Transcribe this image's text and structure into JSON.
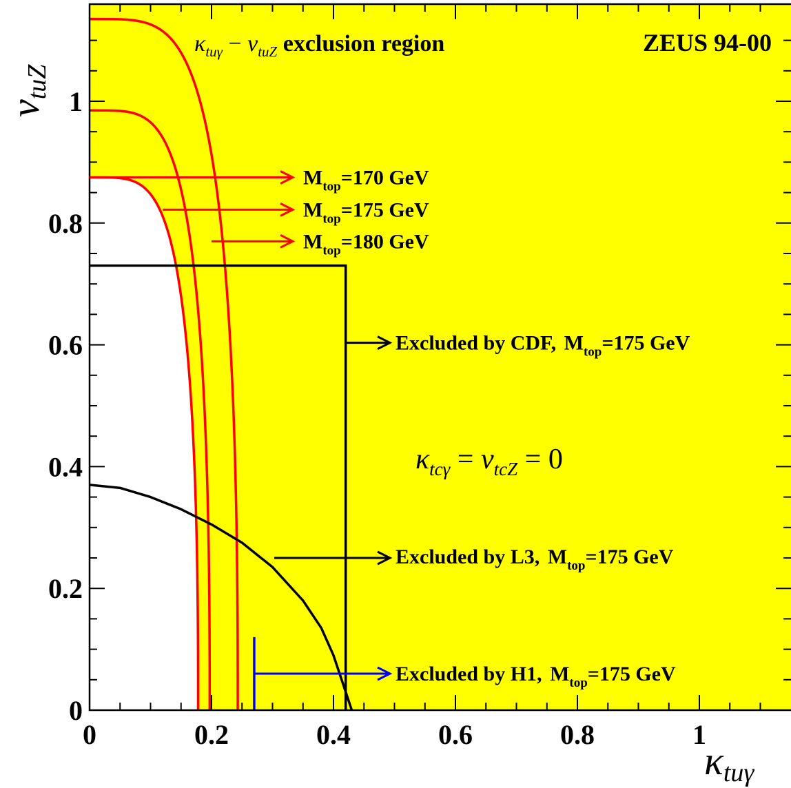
{
  "chart_data": {
    "type": "line",
    "title": "ZEUS 94-00",
    "subtitle": {
      "kappa": "κ",
      "sub1": "tuγ",
      "dash": "−",
      "v": "v",
      "sub2": "tuZ",
      "text": "exclusion region"
    },
    "xlabel": {
      "symbol": "κ",
      "sub": "tuγ"
    },
    "ylabel": {
      "symbol": "v",
      "sub": "tuZ"
    },
    "xlim": [
      0,
      1.15
    ],
    "ylim": [
      0,
      1.15
    ],
    "xticks": [
      "0",
      "0.2",
      "0.4",
      "0.6",
      "0.8",
      "1"
    ],
    "yticks": [
      "0",
      "0.2",
      "0.4",
      "0.6",
      "0.8",
      "1"
    ],
    "background_color": "#ffff00",
    "excluded_color": "#ffff00",
    "allowed_color": "#ffffff",
    "condition": {
      "k": "κ",
      "ksub": "tcγ",
      "eq": "=",
      "v": "v",
      "vsub": "tcZ",
      "eq2": "= 0"
    },
    "series": [
      {
        "name": "M_top=170 GeV",
        "color": "#ff0000",
        "x_intercept": 0.178,
        "y_intercept": 0.875,
        "label_main": "M",
        "label_sub": "top",
        "label_rest": "=170 GeV",
        "arrow_from": [
          0.0,
          0.875
        ],
        "arrow_to": [
          0.33,
          0.875
        ]
      },
      {
        "name": "M_top=175 GeV",
        "color": "#ff0000",
        "x_intercept": 0.197,
        "y_intercept": 0.985,
        "label_main": "M",
        "label_sub": "top",
        "label_rest": "=175 GeV",
        "arrow_from": [
          0.12,
          0.822
        ],
        "arrow_to": [
          0.33,
          0.822
        ]
      },
      {
        "name": "M_top=180 GeV",
        "color": "#ff0000",
        "x_intercept": 0.243,
        "y_intercept": 1.135,
        "label_main": "M",
        "label_sub": "top",
        "label_rest": "=180 GeV",
        "arrow_from": [
          0.2,
          0.77
        ],
        "arrow_to": [
          0.33,
          0.77
        ]
      }
    ],
    "cdf": {
      "name": "Excluded by CDF",
      "color": "#000000",
      "x_limit": 0.42,
      "y_limit": 0.73,
      "label_main": "Excluded by CDF,",
      "label_m": "M",
      "label_sub": "top",
      "label_rest": "=175 GeV",
      "arrow_y": 0.6,
      "arrow_from": 0.42,
      "arrow_to": 0.5
    },
    "l3": {
      "name": "Excluded by L3",
      "color": "#000000",
      "points": [
        [
          0,
          0.37
        ],
        [
          0.05,
          0.365
        ],
        [
          0.1,
          0.35
        ],
        [
          0.15,
          0.33
        ],
        [
          0.2,
          0.305
        ],
        [
          0.25,
          0.275
        ],
        [
          0.3,
          0.235
        ],
        [
          0.35,
          0.18
        ],
        [
          0.38,
          0.135
        ],
        [
          0.4,
          0.09
        ],
        [
          0.415,
          0.045
        ],
        [
          0.43,
          0
        ]
      ],
      "label_main": "Excluded by L3,",
      "label_m": "M",
      "label_sub": "top",
      "label_rest": "=175 GeV",
      "arrow_y": 0.252,
      "arrow_from": 0.3,
      "arrow_to": 0.5
    },
    "h1": {
      "name": "Excluded by H1",
      "color": "#0000ff",
      "x_limit": 0.27,
      "bar_top": 0.12,
      "arrow_y": 0.062,
      "arrow_to": 0.5,
      "label_main": "Excluded by H1,",
      "label_m": "M",
      "label_sub": "top",
      "label_rest": "=175 GeV"
    }
  }
}
